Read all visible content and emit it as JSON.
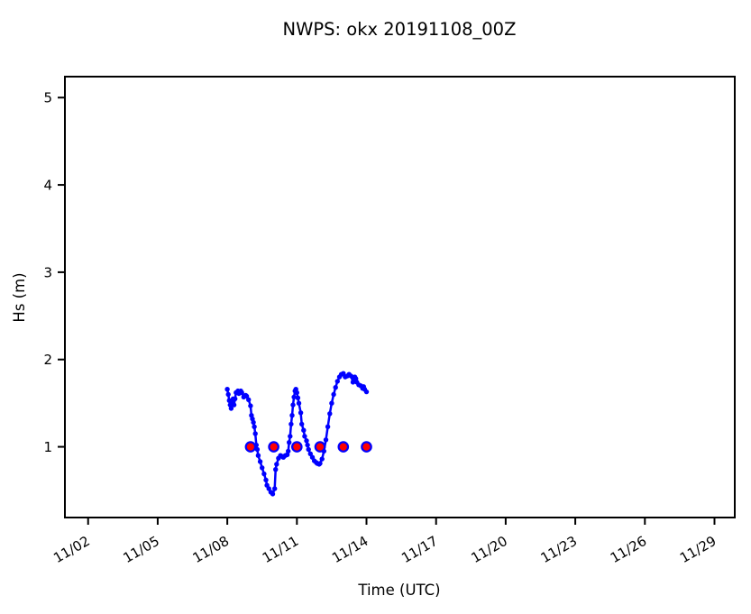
{
  "title": "NWPS: okx 20191108_00Z",
  "colors": {
    "line": "#0000ff",
    "daily_dot_fill": "#ff0000",
    "daily_dot_edge": "#0000ff",
    "axis": "#000000",
    "background": "#ffffff"
  },
  "chart_data": {
    "type": "line",
    "title": "NWPS: okx 20191108_00Z",
    "xlabel": "Time (UTC)",
    "ylabel": "Hs (m)",
    "grid": false,
    "legend": "none",
    "xlim_hours": [
      0,
      693
    ],
    "x_origin_date": "11/01 00Z",
    "ylim": [
      0.19,
      5.24
    ],
    "y_ticks": [
      1,
      2,
      3,
      4,
      5
    ],
    "x_ticks": [
      {
        "label": "11/02",
        "t": 24
      },
      {
        "label": "11/05",
        "t": 96
      },
      {
        "label": "11/08",
        "t": 168
      },
      {
        "label": "11/11",
        "t": 240
      },
      {
        "label": "11/14",
        "t": 312
      },
      {
        "label": "11/17",
        "t": 384
      },
      {
        "label": "11/20",
        "t": 456
      },
      {
        "label": "11/23",
        "t": 528
      },
      {
        "label": "11/26",
        "t": 600
      },
      {
        "label": "11/29",
        "t": 672
      }
    ],
    "series": [
      {
        "name": "forecast-hs",
        "color": "#0000ff",
        "run_start": "11/08 00Z",
        "t0": 168,
        "hours_from_run": [
          0,
          1,
          2,
          3,
          4,
          5,
          6,
          7,
          8,
          9,
          11,
          12,
          14,
          15,
          17,
          19,
          20,
          22,
          24,
          25,
          26,
          27,
          28,
          29,
          30,
          31,
          32,
          34,
          36,
          38,
          40,
          41,
          43,
          45,
          47,
          49,
          50,
          51,
          53,
          55,
          57,
          58,
          60,
          62,
          63,
          64,
          65,
          66,
          67,
          68,
          69,
          70,
          71,
          72,
          73,
          74,
          76,
          77,
          79,
          80,
          82,
          83,
          84,
          86,
          88,
          90,
          92,
          93,
          95,
          96,
          98,
          100,
          102,
          104,
          106,
          108,
          110,
          112,
          114,
          116,
          118,
          120,
          122,
          124,
          126,
          128,
          130,
          131,
          132,
          133,
          134,
          136,
          138,
          140,
          141,
          142,
          144
        ],
        "values": [
          1.66,
          1.6,
          1.53,
          1.48,
          1.44,
          1.5,
          1.55,
          1.48,
          1.55,
          1.62,
          1.64,
          1.61,
          1.64,
          1.62,
          1.57,
          1.59,
          1.58,
          1.54,
          1.47,
          1.36,
          1.32,
          1.28,
          1.23,
          1.15,
          1.02,
          0.97,
          0.9,
          0.83,
          0.76,
          0.69,
          0.62,
          0.56,
          0.52,
          0.48,
          0.46,
          0.52,
          0.74,
          0.8,
          0.87,
          0.9,
          0.89,
          0.88,
          0.9,
          0.91,
          0.95,
          1.05,
          1.12,
          1.26,
          1.36,
          1.48,
          1.57,
          1.64,
          1.66,
          1.62,
          1.56,
          1.5,
          1.39,
          1.26,
          1.19,
          1.12,
          1.07,
          1.02,
          0.97,
          0.92,
          0.88,
          0.84,
          0.82,
          0.81,
          0.8,
          0.81,
          0.86,
          0.95,
          1.08,
          1.23,
          1.38,
          1.5,
          1.6,
          1.68,
          1.75,
          1.8,
          1.83,
          1.84,
          1.8,
          1.81,
          1.83,
          1.81,
          1.74,
          1.77,
          1.8,
          1.78,
          1.74,
          1.71,
          1.7,
          1.67,
          1.69,
          1.66,
          1.63
        ]
      }
    ],
    "daily_markers": {
      "name": "daily-hs-dots",
      "fill": "#ff0000",
      "edge": "#0000ff",
      "value": 1.0,
      "dates": [
        "11/09",
        "11/10",
        "11/11",
        "11/12",
        "11/13",
        "11/14"
      ],
      "t": [
        192,
        216,
        240,
        264,
        288,
        312
      ]
    }
  }
}
